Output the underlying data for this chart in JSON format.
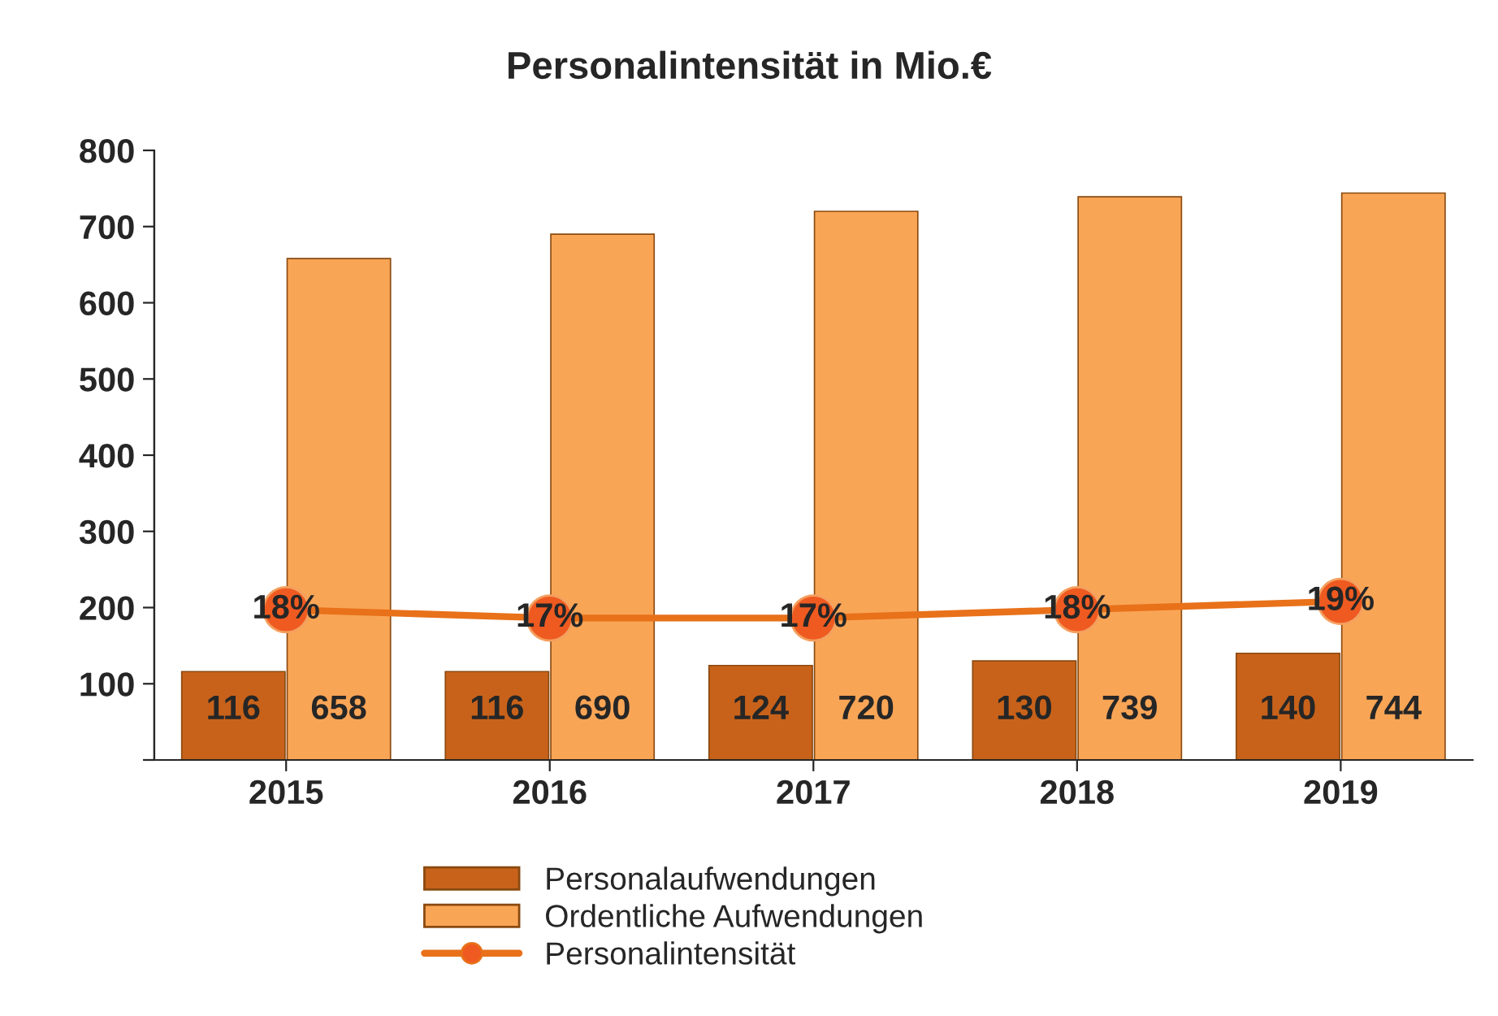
{
  "chart_data": {
    "type": "bar",
    "title": "Personalintensität in Mio.€",
    "categories": [
      "2015",
      "2016",
      "2017",
      "2018",
      "2019"
    ],
    "series": [
      {
        "name": "Personalaufwendungen",
        "color": "#c8621a",
        "values": [
          116,
          116,
          124,
          130,
          140
        ]
      },
      {
        "name": "Ordentliche Aufwendungen",
        "color": "#f9a556",
        "values": [
          658,
          690,
          720,
          739,
          744
        ]
      },
      {
        "name": "Personalintensität",
        "type": "line",
        "axis": "y2",
        "color": "#e8711a",
        "marker": "circle",
        "values": [
          18,
          17,
          17,
          18,
          19
        ],
        "value_labels": [
          "18%",
          "17%",
          "17%",
          "18%",
          "19%"
        ]
      }
    ],
    "data_labels": true,
    "ylim": [
      0,
      800
    ],
    "yticks": [
      {
        "value": 0,
        "label": null
      },
      100,
      200,
      300,
      400,
      500,
      600,
      700,
      800
    ],
    "y2lim": [
      0,
      73
    ],
    "grid": false,
    "legend": "bottom"
  }
}
